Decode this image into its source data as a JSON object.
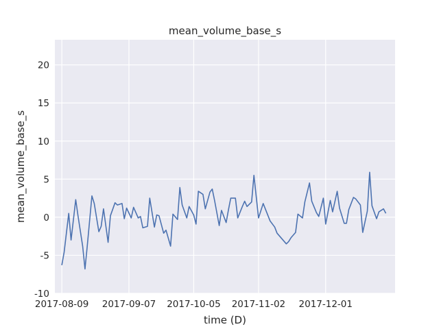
{
  "chart_data": {
    "type": "line",
    "title": "mean_volume_base_s",
    "xlabel": "time (D)",
    "ylabel": "mean_volume_base_s",
    "xlim": [
      "2017-08-06",
      "2017-12-31"
    ],
    "ylim": [
      -10,
      23.3
    ],
    "yticks": [
      -10,
      -5,
      0,
      5,
      10,
      15,
      20
    ],
    "xticks": [
      "2017-08-09",
      "2017-09-07",
      "2017-10-05",
      "2017-11-02",
      "2017-12-01"
    ],
    "grid": true,
    "line_color": "#4c72b0",
    "background_color": "#eaeaf2",
    "series": [
      {
        "x": [
          "2017-08-09",
          "2017-08-10",
          "2017-08-12",
          "2017-08-13",
          "2017-08-15",
          "2017-08-16",
          "2017-08-18",
          "2017-08-19",
          "2017-08-20",
          "2017-08-22",
          "2017-08-23",
          "2017-08-25",
          "2017-08-26",
          "2017-08-27",
          "2017-08-29",
          "2017-08-30",
          "2017-09-01",
          "2017-09-02",
          "2017-09-04",
          "2017-09-05",
          "2017-09-06",
          "2017-09-08",
          "2017-09-09",
          "2017-09-11",
          "2017-09-12",
          "2017-09-13",
          "2017-09-15",
          "2017-09-16",
          "2017-09-18",
          "2017-09-19",
          "2017-09-20",
          "2017-09-22",
          "2017-09-23",
          "2017-09-25",
          "2017-09-26",
          "2017-09-28",
          "2017-09-29",
          "2017-09-30",
          "2017-10-02",
          "2017-10-03",
          "2017-10-05",
          "2017-10-06",
          "2017-10-07",
          "2017-10-09",
          "2017-10-10",
          "2017-10-12",
          "2017-10-13",
          "2017-10-14",
          "2017-10-16",
          "2017-10-17",
          "2017-10-19",
          "2017-10-20",
          "2017-10-21",
          "2017-10-23",
          "2017-10-24",
          "2017-10-26",
          "2017-10-27",
          "2017-10-28",
          "2017-10-30",
          "2017-10-31",
          "2017-11-02",
          "2017-11-04",
          "2017-11-07",
          "2017-11-09",
          "2017-11-10",
          "2017-11-14",
          "2017-11-15",
          "2017-11-16",
          "2017-11-18",
          "2017-11-19",
          "2017-11-21",
          "2017-11-22",
          "2017-11-24",
          "2017-11-25",
          "2017-11-27",
          "2017-11-28",
          "2017-11-30",
          "2017-12-01",
          "2017-12-03",
          "2017-12-04",
          "2017-12-06",
          "2017-12-07",
          "2017-12-09",
          "2017-12-10",
          "2017-12-11",
          "2017-12-13",
          "2017-12-14",
          "2017-12-16",
          "2017-12-17",
          "2017-12-19",
          "2017-12-20",
          "2017-12-21",
          "2017-12-23",
          "2017-12-24",
          "2017-12-26",
          "2017-12-27"
        ],
        "y": [
          -6.3,
          -4.6,
          0.5,
          -3.0,
          2.3,
          0.2,
          -3.8,
          -6.8,
          -3.8,
          2.8,
          1.8,
          -1.9,
          -1.2,
          1.1,
          -3.3,
          0.2,
          1.9,
          1.6,
          1.8,
          -0.2,
          1.2,
          -0.1,
          1.3,
          -0.1,
          0.1,
          -1.4,
          -1.2,
          2.5,
          -1.3,
          0.3,
          0.2,
          -2.1,
          -1.7,
          -3.8,
          0.4,
          -0.3,
          3.9,
          1.6,
          -0.1,
          1.4,
          0.3,
          -0.9,
          3.4,
          3.0,
          1.1,
          3.3,
          3.7,
          2.2,
          -1.1,
          0.9,
          -0.7,
          1.0,
          2.5,
          2.5,
          -0.1,
          1.4,
          2.1,
          1.4,
          2.0,
          5.5,
          -0.1,
          1.8,
          -0.5,
          -1.3,
          -2.1,
          -3.5,
          -3.2,
          -2.7,
          -2.0,
          0.4,
          -0.1,
          2.0,
          4.5,
          2.1,
          0.6,
          0.1,
          2.5,
          -0.9,
          2.2,
          0.7,
          3.4,
          1.2,
          -0.8,
          -0.8,
          1.0,
          2.6,
          2.4,
          1.6,
          -2.0,
          0.8,
          5.9,
          1.5,
          -0.2,
          0.7,
          1.1,
          0.5
        ]
      }
    ]
  }
}
